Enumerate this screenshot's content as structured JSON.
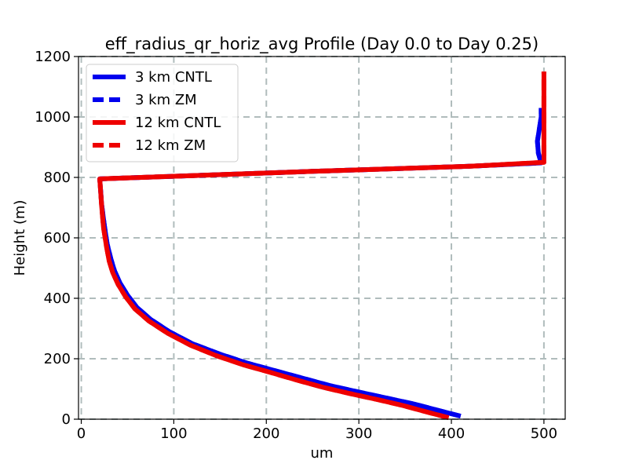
{
  "chart_data": {
    "type": "line",
    "title": "eff_radius_qr_horiz_avg Profile (Day 0.0 to Day 0.25)",
    "xlabel": "um",
    "ylabel": "Height (m)",
    "xlim": [
      -3,
      523
    ],
    "ylim": [
      0,
      1200
    ],
    "xticks": [
      0,
      100,
      200,
      300,
      400,
      500
    ],
    "yticks": [
      0,
      200,
      400,
      600,
      800,
      1000,
      1200
    ],
    "grid": true,
    "legend_position": "upper-left",
    "series": [
      {
        "name": "3 km CNTL",
        "color": "#0000ee",
        "style": "solid",
        "x": [
          410,
          385,
          360,
          330,
          300,
          270,
          240,
          210,
          180,
          150,
          120,
          95,
          75,
          60,
          50,
          42,
          36,
          32,
          28,
          25,
          22,
          20,
          250,
          420,
          497,
          494,
          493,
          495,
          497,
          497
        ],
        "y": [
          10,
          30,
          50,
          70,
          90,
          110,
          135,
          160,
          185,
          215,
          250,
          290,
          330,
          370,
          410,
          450,
          490,
          530,
          580,
          640,
          710,
          795,
          820,
          837,
          848,
          880,
          920,
          960,
          1000,
          1030
        ]
      },
      {
        "name": "3 km ZM",
        "color": "#0000ee",
        "style": "dashed",
        "x": [
          410,
          385,
          360,
          330,
          300,
          270,
          240,
          210,
          180,
          150,
          120,
          95,
          75,
          60,
          50,
          42,
          36,
          32,
          28,
          25,
          22,
          20,
          250,
          420,
          497,
          494,
          493,
          495,
          497,
          497
        ],
        "y": [
          10,
          30,
          50,
          70,
          90,
          110,
          135,
          160,
          185,
          215,
          250,
          290,
          330,
          370,
          410,
          450,
          490,
          530,
          580,
          640,
          710,
          795,
          820,
          837,
          848,
          880,
          920,
          960,
          1000,
          1030
        ]
      },
      {
        "name": "12 km CNTL",
        "color": "#ee0000",
        "style": "solid",
        "x": [
          397,
          372,
          348,
          320,
          290,
          262,
          232,
          204,
          175,
          146,
          118,
          93,
          73,
          58,
          48,
          40,
          34,
          30,
          27,
          24,
          22,
          20,
          250,
          420,
          500,
          500,
          500,
          500,
          500,
          500
        ],
        "y": [
          5,
          25,
          45,
          65,
          85,
          105,
          130,
          155,
          180,
          210,
          245,
          285,
          325,
          365,
          405,
          445,
          485,
          525,
          575,
          635,
          705,
          795,
          820,
          837,
          850,
          900,
          950,
          1000,
          1080,
          1150
        ]
      },
      {
        "name": "12 km ZM",
        "color": "#ee0000",
        "style": "dashed",
        "x": [
          397,
          372,
          348,
          320,
          290,
          262,
          232,
          204,
          175,
          146,
          118,
          93,
          73,
          58,
          48,
          40,
          34,
          30,
          27,
          24,
          22,
          20,
          250,
          420,
          500,
          500,
          500,
          500,
          500,
          500
        ],
        "y": [
          5,
          25,
          45,
          65,
          85,
          105,
          130,
          155,
          180,
          210,
          245,
          285,
          325,
          365,
          405,
          445,
          485,
          525,
          575,
          635,
          705,
          795,
          820,
          837,
          850,
          900,
          950,
          1000,
          1080,
          1150
        ]
      }
    ]
  }
}
